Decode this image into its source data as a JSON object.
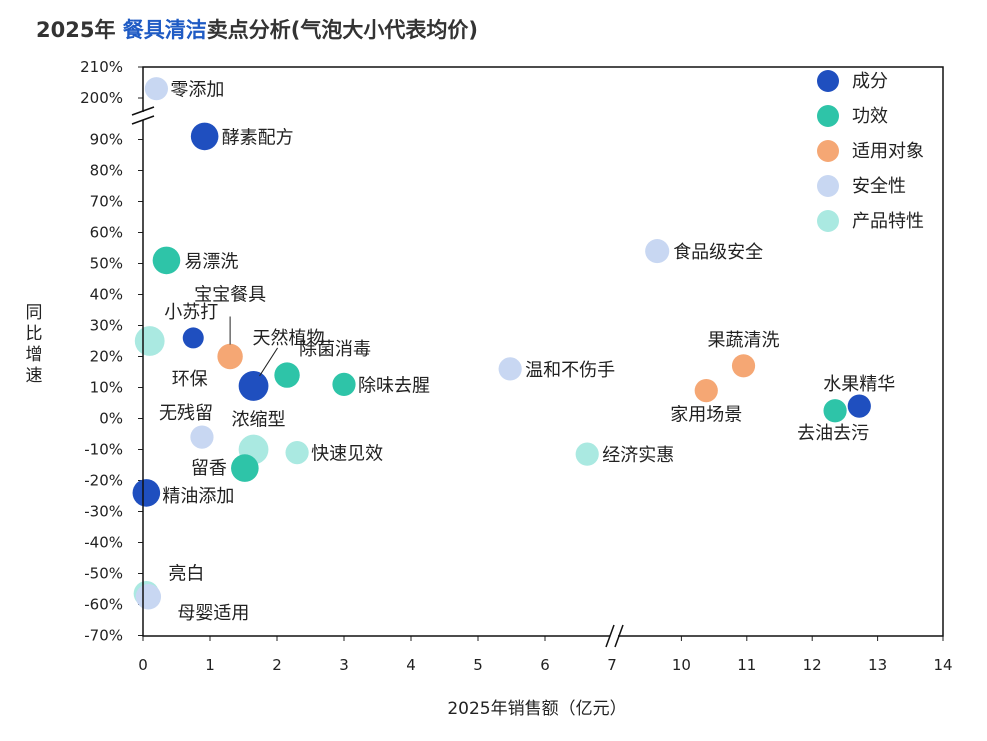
{
  "title": {
    "year": "2025年",
    "highlight": "餐具清洁",
    "rest": "卖点分析(气泡大小代表均价)"
  },
  "chart_data": {
    "type": "scatter",
    "variant": "bubble",
    "title": "2025年 餐具清洁卖点分析(气泡大小代表均价)",
    "xlabel": "2025年销售额（亿元）",
    "ylabel": "同比增速",
    "xlim": [
      0,
      14
    ],
    "ylim": [
      -0.7,
      2.1
    ],
    "x_break": [
      7,
      9
    ],
    "y_break": [
      0.95,
      1.95
    ],
    "x_ticks": [
      "0",
      "1",
      "2",
      "3",
      "4",
      "5",
      "6",
      "7",
      "10",
      "11",
      "12",
      "13",
      "14"
    ],
    "y_ticks": [
      "-70%",
      "-60%",
      "-50%",
      "-40%",
      "-30%",
      "-20%",
      "-10%",
      "0%",
      "10%",
      "20%",
      "30%",
      "40%",
      "50%",
      "60%",
      "70%",
      "80%",
      "90%",
      "200%",
      "210%"
    ],
    "legend_position": "top-right",
    "categories": [
      {
        "name": "成分",
        "color": "#1f4fbf"
      },
      {
        "name": "功效",
        "color": "#2ec4a8"
      },
      {
        "name": "适用对象",
        "color": "#f5a774"
      },
      {
        "name": "安全性",
        "color": "#c8d7f2"
      },
      {
        "name": "产品特性",
        "color": "#aae9e1"
      }
    ],
    "points": [
      {
        "label": "零添加",
        "category": "安全性",
        "x": 0.2,
        "y": 2.03,
        "size": 3
      },
      {
        "label": "酵素配方",
        "category": "成分",
        "x": 0.92,
        "y": 0.91,
        "size": 4
      },
      {
        "label": "易漂洗",
        "category": "功效",
        "x": 0.35,
        "y": 0.51,
        "size": 4
      },
      {
        "label": "宝宝餐具",
        "category": "适用对象",
        "x": 1.3,
        "y": 0.2,
        "size": 3.5
      },
      {
        "label": "小苏打",
        "category": "成分",
        "x": 0.75,
        "y": 0.26,
        "size": 2.5
      },
      {
        "label": "环保",
        "category": "产品特性",
        "x": 0.1,
        "y": 0.25,
        "size": 4.5
      },
      {
        "label": "天然植物",
        "category": "成分",
        "x": 1.65,
        "y": 0.105,
        "size": 4.5
      },
      {
        "label": "除菌消毒",
        "category": "功效",
        "x": 2.15,
        "y": 0.14,
        "size": 3.5
      },
      {
        "label": "除味去腥",
        "category": "功效",
        "x": 3.0,
        "y": 0.11,
        "size": 3
      },
      {
        "label": "无残留",
        "category": "安全性",
        "x": 0.88,
        "y": -0.06,
        "size": 3
      },
      {
        "label": "浓缩型",
        "category": "产品特性",
        "x": 1.65,
        "y": -0.1,
        "size": 4.5
      },
      {
        "label": "快速见效",
        "category": "产品特性",
        "x": 2.3,
        "y": -0.11,
        "size": 3
      },
      {
        "label": "留香",
        "category": "功效",
        "x": 1.52,
        "y": -0.16,
        "size": 4
      },
      {
        "label": "精油添加",
        "category": "成分",
        "x": 0.05,
        "y": -0.24,
        "size": 4
      },
      {
        "label": "亮白",
        "category": "产品特性",
        "x": 0.05,
        "y": -0.565,
        "size": 3.5
      },
      {
        "label": "母婴适用",
        "category": "安全性",
        "x": 0.08,
        "y": -0.575,
        "size": 3.5
      },
      {
        "label": "温和不伤手",
        "category": "安全性",
        "x": 5.48,
        "y": 0.16,
        "size": 3
      },
      {
        "label": "经济实惠",
        "category": "产品特性",
        "x": 6.63,
        "y": -0.115,
        "size": 3
      },
      {
        "label": "食品级安全",
        "category": "安全性",
        "x": 9.63,
        "y": 0.54,
        "size": 3.2
      },
      {
        "label": "果蔬清洗",
        "category": "适用对象",
        "x": 10.95,
        "y": 0.17,
        "size": 3
      },
      {
        "label": "家用场景",
        "category": "适用对象",
        "x": 10.38,
        "y": 0.09,
        "size": 3
      },
      {
        "label": "水果精华",
        "category": "成分",
        "x": 12.72,
        "y": 0.04,
        "size": 3
      },
      {
        "label": "去油去污",
        "category": "功效",
        "x": 12.35,
        "y": 0.025,
        "size": 3
      }
    ]
  }
}
